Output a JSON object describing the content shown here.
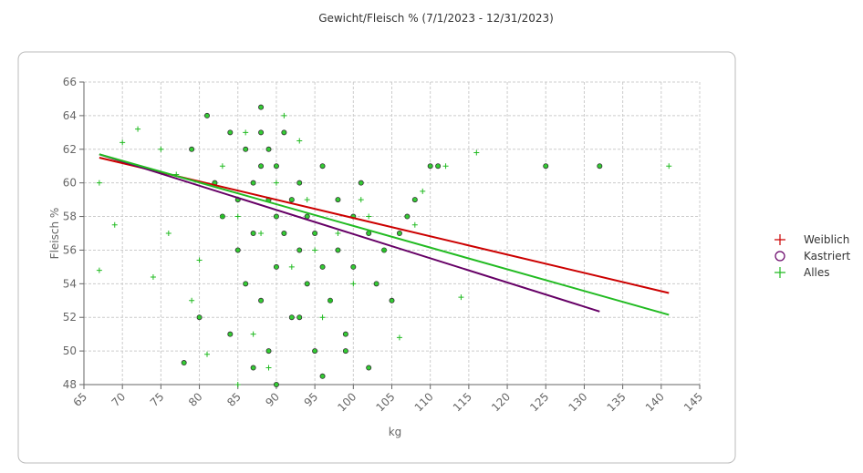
{
  "chart_data": {
    "type": "scatter",
    "title": "Gewicht/Fleisch % (7/1/2023 - 12/31/2023)",
    "x_label": "kg",
    "y_label": "Fleisch %",
    "xlim": [
      65,
      145
    ],
    "xticks": [
      65,
      70,
      75,
      80,
      85,
      90,
      95,
      100,
      105,
      110,
      115,
      120,
      125,
      130,
      135,
      140,
      145
    ],
    "ylim": [
      48,
      66
    ],
    "yticks": [
      48,
      50,
      52,
      54,
      56,
      58,
      60,
      62,
      64,
      66
    ],
    "grid": true,
    "legend": "right",
    "series": [
      {
        "name": "Weiblich",
        "color": "#cc0000",
        "marker": "plus",
        "x": [],
        "y": [],
        "trend": {
          "x": [
            67,
            141
          ],
          "y": [
            61.5,
            53.45
          ]
        }
      },
      {
        "name": "Kastriert",
        "color": "#660066",
        "point_color": "#33cc33",
        "marker": "circle",
        "x": [
          79,
          81,
          82,
          83,
          84,
          85,
          85,
          86,
          86,
          87,
          87,
          88,
          88,
          88,
          89,
          89,
          89,
          90,
          90,
          90,
          91,
          91,
          92,
          92,
          93,
          93,
          94,
          94,
          95,
          95,
          96,
          96,
          97,
          98,
          98,
          99,
          100,
          100,
          101,
          102,
          103,
          104,
          105,
          106,
          107,
          108,
          110,
          111,
          125,
          132,
          78,
          80,
          84,
          87,
          90,
          93,
          96,
          99,
          102,
          88
        ],
        "y": [
          62,
          64,
          60,
          58,
          63,
          59,
          56,
          62,
          54,
          60,
          57,
          61,
          64.5,
          53,
          59,
          62,
          50,
          58,
          55,
          61,
          57,
          63,
          52,
          59,
          56,
          60,
          54,
          58,
          50,
          57,
          55,
          61,
          53,
          59,
          56,
          51,
          58,
          55,
          60,
          57,
          54,
          56,
          53,
          57,
          58,
          59,
          61,
          61,
          61,
          61,
          49.3,
          52,
          51,
          49,
          48,
          52,
          48.5,
          50,
          49,
          63
        ],
        "trend": {
          "x": [
            67,
            132
          ],
          "y": [
            61.7,
            52.35
          ]
        }
      },
      {
        "name": "Alles",
        "color": "#22bb22",
        "marker": "plus",
        "x": [
          67,
          67,
          69,
          70,
          72,
          74,
          75,
          76,
          77,
          79,
          80,
          81,
          83,
          85,
          86,
          88,
          90,
          92,
          94,
          96,
          98,
          100,
          102,
          104,
          106,
          108,
          109,
          112,
          114,
          116,
          141,
          85,
          89,
          93,
          97,
          101,
          91,
          87,
          83,
          95
        ],
        "y": [
          60,
          54.8,
          57.5,
          62.4,
          63.2,
          54.4,
          62,
          57,
          60.5,
          53,
          55.4,
          49.8,
          61,
          58,
          63,
          57,
          60,
          55,
          59,
          52,
          57,
          54,
          58,
          56,
          50.8,
          57.5,
          59.5,
          61,
          53.2,
          61.8,
          61,
          48,
          49,
          62.5,
          53,
          59,
          64,
          51,
          58,
          56
        ],
        "trend": {
          "x": [
            67,
            141
          ],
          "y": [
            61.7,
            52.15
          ]
        }
      }
    ]
  }
}
